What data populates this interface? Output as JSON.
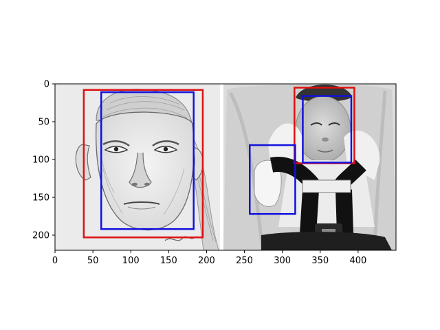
{
  "chart_data": {
    "type": "image_with_bounding_boxes",
    "xlim": [
      0,
      450
    ],
    "ylim": [
      220,
      0
    ],
    "x_ticks": [
      0,
      50,
      100,
      150,
      200,
      250,
      300,
      350,
      400
    ],
    "y_ticks": [
      0,
      50,
      100,
      150,
      200
    ],
    "panels": [
      {
        "name": "sketch",
        "x_range": [
          0,
          220
        ],
        "y_range": [
          0,
          220
        ],
        "style": "pencil-drawing"
      },
      {
        "name": "photo",
        "x_range": [
          225,
          450
        ],
        "y_range": [
          0,
          220
        ],
        "style": "infant-car-seat"
      }
    ],
    "boxes": [
      {
        "color": "#dd1111",
        "x0": 38,
        "y0": 8,
        "x1": 195,
        "y1": 203
      },
      {
        "color": "#1111dd",
        "x0": 61,
        "y0": 11,
        "x1": 183,
        "y1": 192
      },
      {
        "color": "#dd1111",
        "x0": 316,
        "y0": 5,
        "x1": 395,
        "y1": 105
      },
      {
        "color": "#1111dd",
        "x0": 327,
        "y0": 16,
        "x1": 391,
        "y1": 104
      },
      {
        "color": "#1111dd",
        "x0": 257,
        "y0": 81,
        "x1": 317,
        "y1": 172
      }
    ]
  }
}
